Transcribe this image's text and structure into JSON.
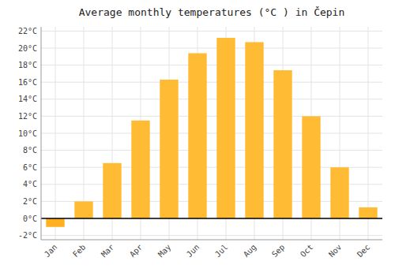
{
  "chart_data": {
    "type": "bar",
    "title": "Average monthly temperatures (°C ) in Čepin",
    "categories": [
      "Jan",
      "Feb",
      "Mar",
      "Apr",
      "May",
      "Jun",
      "Jul",
      "Aug",
      "Sep",
      "Oct",
      "Nov",
      "Dec"
    ],
    "values": [
      -1.0,
      2.0,
      6.5,
      11.5,
      16.3,
      19.4,
      21.2,
      20.7,
      17.4,
      12.0,
      6.0,
      1.3
    ],
    "colors": [
      "#FFB020",
      "#FFBB33",
      "#FFBB33",
      "#FFBB33",
      "#FFBB33",
      "#FFBB33",
      "#FFBB33",
      "#FFBB33",
      "#FFBB33",
      "#FFBB33",
      "#FFBB33",
      "#FFBB33"
    ],
    "ylim": [
      -2.5,
      22.5
    ],
    "yticks": [
      {
        "value": -2,
        "label": "-2°C"
      },
      {
        "value": 0,
        "label": "0°C"
      },
      {
        "value": 2,
        "label": "2°C"
      },
      {
        "value": 4,
        "label": "4°C"
      },
      {
        "value": 6,
        "label": "6°C"
      },
      {
        "value": 8,
        "label": "8°C"
      },
      {
        "value": 10,
        "label": "10°C"
      },
      {
        "value": 12,
        "label": "12°C"
      },
      {
        "value": 14,
        "label": "14°C"
      },
      {
        "value": 16,
        "label": "16°C"
      },
      {
        "value": 18,
        "label": "18°C"
      },
      {
        "value": 20,
        "label": "20°C"
      },
      {
        "value": 22,
        "label": "22°C"
      }
    ],
    "grid": true
  }
}
